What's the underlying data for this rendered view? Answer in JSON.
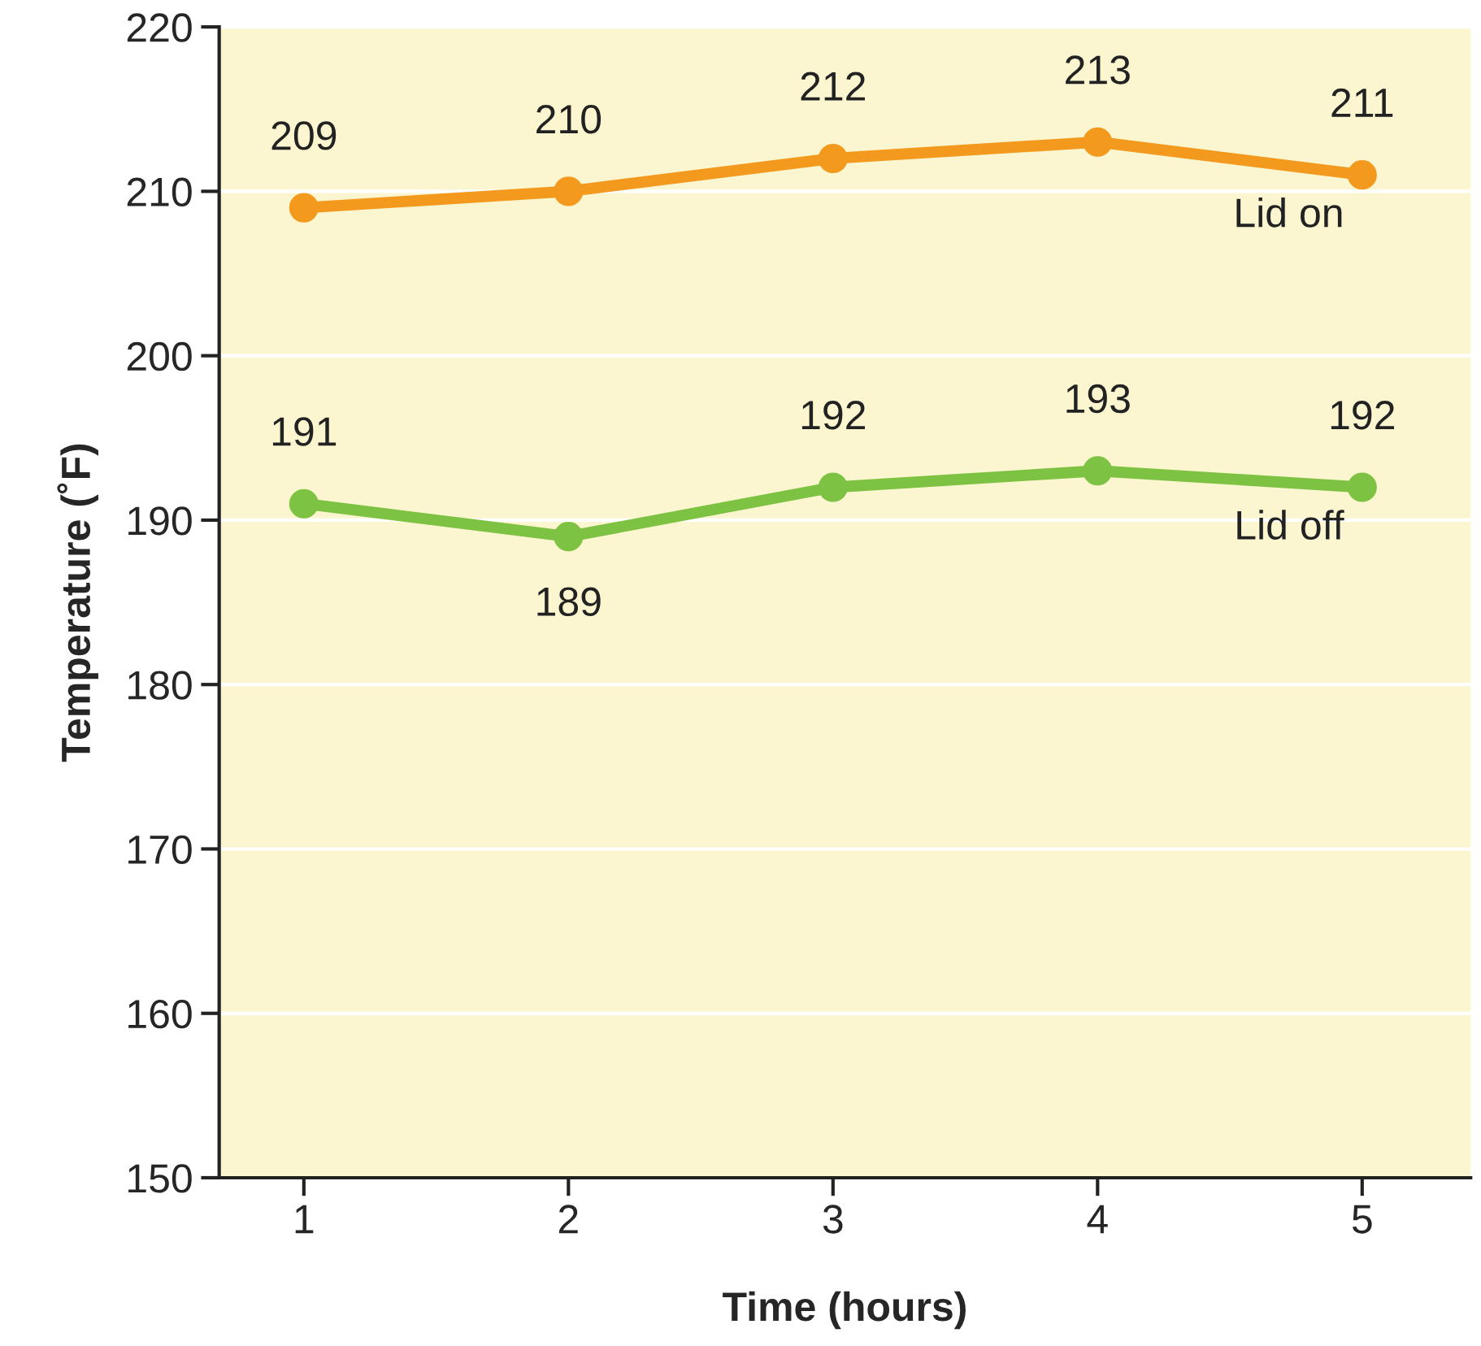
{
  "chart_data": {
    "type": "line",
    "xlabel": "Time (hours)",
    "ylabel": "Temperature (˚F)",
    "x": [
      1,
      2,
      3,
      4,
      5
    ],
    "series": [
      {
        "name": "Lid on",
        "color": "#f39a1e",
        "values": [
          209,
          210,
          212,
          213,
          211
        ]
      },
      {
        "name": "Lid off",
        "color": "#7dc242",
        "values": [
          191,
          189,
          192,
          193,
          192
        ]
      }
    ],
    "xlim": [
      0.68,
      5.41
    ],
    "xticks": [
      1,
      2,
      3,
      4,
      5
    ],
    "ylim": [
      150,
      220
    ],
    "yticks": [
      150,
      160,
      170,
      180,
      190,
      200,
      210,
      220
    ],
    "grid": "y",
    "marker": "circle",
    "line_style": "solid",
    "data_labels": true,
    "legend": false
  }
}
